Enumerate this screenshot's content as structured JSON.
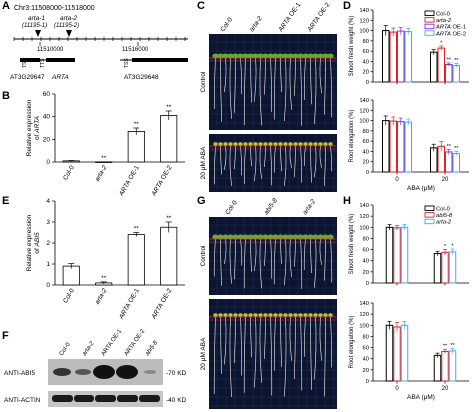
{
  "panel_labels": {
    "A": "A",
    "B": "B",
    "C": "C",
    "D": "D",
    "E": "E",
    "F": "F",
    "G": "G",
    "H": "H"
  },
  "panelA": {
    "chr_label": "Chr3:11508000-11518000",
    "arta1": "arta-1",
    "arta1_pos": "(11195-1)",
    "arta2": "arta-2",
    "arta2_pos": "(11195-2)",
    "coord1": "11510000",
    "coord2": "11516000",
    "tss": "TSS",
    "tts": "TTS",
    "gene1": "AT3G29647",
    "gene1b": "ARTA",
    "gene2": "AT3G29648"
  },
  "panelC": {
    "genotypes": [
      "Col-0",
      "arta-2",
      "ARTA OE-1",
      "ARTA OE-2"
    ],
    "row_labels": [
      "Control",
      "20 μM ABA"
    ]
  },
  "panelF": {
    "lanes": [
      "Col-0",
      "arta-2",
      "ARTA OE-1",
      "ARTA OE-2",
      "abi5-8"
    ],
    "rows": [
      "ANTI-ABI5",
      "ANTI-ACTIN"
    ],
    "sizes": [
      "70 KD",
      "40 KD"
    ]
  },
  "panelG": {
    "genotypes": [
      "Col-0",
      "abi5-8",
      "arta-2"
    ],
    "row_labels": [
      "Control",
      "20 μM ABA"
    ]
  },
  "colors": {
    "col0": "#000000",
    "arta2": "#e02020",
    "oe1": "#8a2be2",
    "oe2": "#3fa9f5",
    "abi58": "#e02020"
  },
  "chart_data": [
    {
      "id": "B",
      "type": "bar",
      "ylabel": "Relative expression of ARTA",
      "categories": [
        "Col-0",
        "arta-2",
        "ARTA OE-1",
        "ARTA OE-2"
      ],
      "values": [
        1,
        0.1,
        27,
        41
      ],
      "errors": [
        0.3,
        0.05,
        3,
        4
      ],
      "significance": [
        "",
        "**",
        "**",
        "**"
      ],
      "yticks": [
        0,
        20,
        40,
        60
      ],
      "ylim": [
        0,
        60
      ]
    },
    {
      "id": "E",
      "type": "bar",
      "ylabel": "Relative expression of ABI5",
      "categories": [
        "Col-0",
        "arta-2",
        "ARTA OE-1",
        "ARTA OE-2"
      ],
      "values": [
        0.9,
        0.1,
        2.4,
        2.75
      ],
      "errors": [
        0.12,
        0.05,
        0.1,
        0.25
      ],
      "significance": [
        "",
        "**",
        "**",
        "**"
      ],
      "yticks": [
        0,
        1,
        2,
        3,
        4
      ],
      "ylim": [
        0,
        4
      ]
    },
    {
      "id": "D1",
      "type": "bar",
      "ylabel": "Shoot fresh weight (%)",
      "groups": [
        "0",
        "20"
      ],
      "series": [
        {
          "name": "Col-0",
          "values": [
            100,
            58
          ],
          "errors": [
            10,
            5
          ]
        },
        {
          "name": "arta-2",
          "values": [
            97,
            66
          ],
          "errors": [
            8,
            4
          ]
        },
        {
          "name": "ARTA OE-1",
          "values": [
            99,
            34
          ],
          "errors": [
            7,
            3
          ]
        },
        {
          "name": "ARTA OE-2",
          "values": [
            98,
            32
          ],
          "errors": [
            6,
            4
          ]
        }
      ],
      "significance": [
        [
          "",
          "",
          "",
          ""
        ],
        [
          "",
          "*",
          "**",
          "**"
        ]
      ],
      "yticks": [
        0,
        20,
        40,
        60,
        80,
        100,
        120,
        140
      ],
      "ylim": [
        0,
        140
      ]
    },
    {
      "id": "D2",
      "type": "bar",
      "ylabel": "Root elongation (%)",
      "xlabel": "ABA (μM)",
      "groups": [
        "0",
        "20"
      ],
      "series": [
        {
          "name": "Col-0",
          "values": [
            100,
            47
          ],
          "errors": [
            9,
            7
          ]
        },
        {
          "name": "arta-2",
          "values": [
            99,
            50
          ],
          "errors": [
            8,
            9
          ]
        },
        {
          "name": "ARTA OE-1",
          "values": [
            98,
            39
          ],
          "errors": [
            7,
            5
          ]
        },
        {
          "name": "ARTA OE-2",
          "values": [
            97,
            36
          ],
          "errors": [
            6,
            4
          ]
        }
      ],
      "significance": [
        [
          "",
          "",
          "",
          ""
        ],
        [
          "",
          "",
          "**",
          "**"
        ]
      ],
      "yticks": [
        0,
        20,
        40,
        60,
        80,
        100,
        120,
        140
      ],
      "ylim": [
        0,
        140
      ]
    },
    {
      "id": "H1",
      "type": "bar",
      "ylabel": "Shoot fresh weight (%)",
      "groups": [
        "0",
        "20"
      ],
      "series": [
        {
          "name": "Col-0",
          "values": [
            100,
            53
          ],
          "errors": [
            5,
            4
          ]
        },
        {
          "name": "abi5-8",
          "values": [
            99,
            55
          ],
          "errors": [
            4,
            5
          ]
        },
        {
          "name": "arta-2",
          "values": [
            100,
            56
          ],
          "errors": [
            5,
            5
          ]
        }
      ],
      "significance": [
        [
          "",
          "",
          ""
        ],
        [
          "",
          "*",
          "*"
        ]
      ],
      "yticks": [
        0,
        20,
        40,
        60,
        80,
        100,
        120,
        140
      ],
      "ylim": [
        0,
        140
      ]
    },
    {
      "id": "H2",
      "type": "bar",
      "ylabel": "Root elongation (%)",
      "xlabel": "ABA (μM)",
      "groups": [
        "0",
        "20"
      ],
      "series": [
        {
          "name": "Col-0",
          "values": [
            100,
            46
          ],
          "errors": [
            7,
            4
          ]
        },
        {
          "name": "abi5-8",
          "values": [
            97,
            53
          ],
          "errors": [
            8,
            4
          ]
        },
        {
          "name": "arta-2",
          "values": [
            100,
            54
          ],
          "errors": [
            7,
            4
          ]
        }
      ],
      "significance": [
        [
          "",
          "",
          ""
        ],
        [
          "",
          "**",
          "**"
        ]
      ],
      "yticks": [
        0,
        20,
        40,
        60,
        80,
        100,
        120,
        140
      ],
      "ylim": [
        0,
        140
      ]
    }
  ]
}
